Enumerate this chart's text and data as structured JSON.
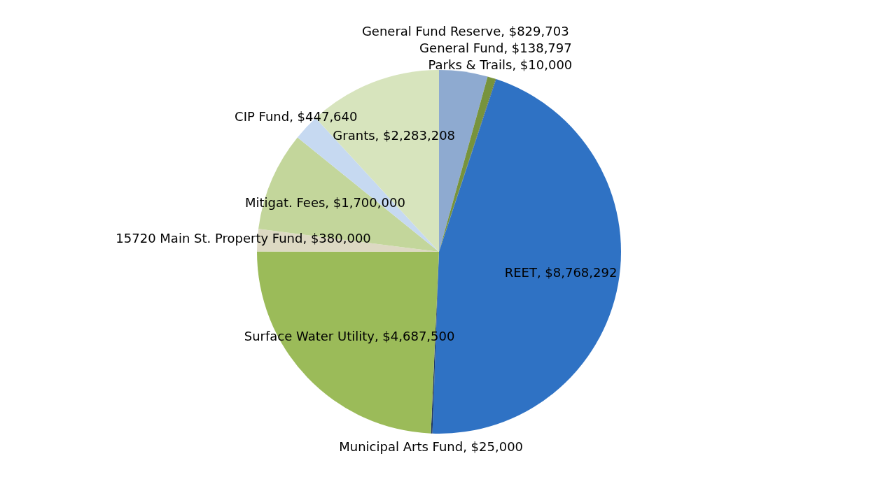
{
  "chart_data": {
    "type": "pie",
    "categories": [
      "General Fund Reserve",
      "General Fund",
      "Parks & Trails",
      "REET",
      "Municipal Arts Fund",
      "Surface Water Utility",
      "15720 Main St. Property Fund",
      "Mitigat. Fees",
      "CIP Fund",
      "Grants"
    ],
    "values": [
      829703,
      138797,
      10000,
      8768292,
      25000,
      4687500,
      380000,
      1700000,
      447640,
      2283208
    ],
    "value_labels": [
      "$829,703",
      "$138,797",
      "$10,000",
      "$8,768,292",
      "$25,000",
      "$4,687,500",
      "$380,000",
      "$1,700,000",
      "$447,640",
      "$2,283,208"
    ],
    "colors": [
      "#8eaad0",
      "#77933c",
      "#4f6228",
      "#2f72c4",
      "#1f3864",
      "#9bbb59",
      "#ddd9c3",
      "#c3d69b",
      "#c6d9f1",
      "#d7e4bd"
    ]
  }
}
